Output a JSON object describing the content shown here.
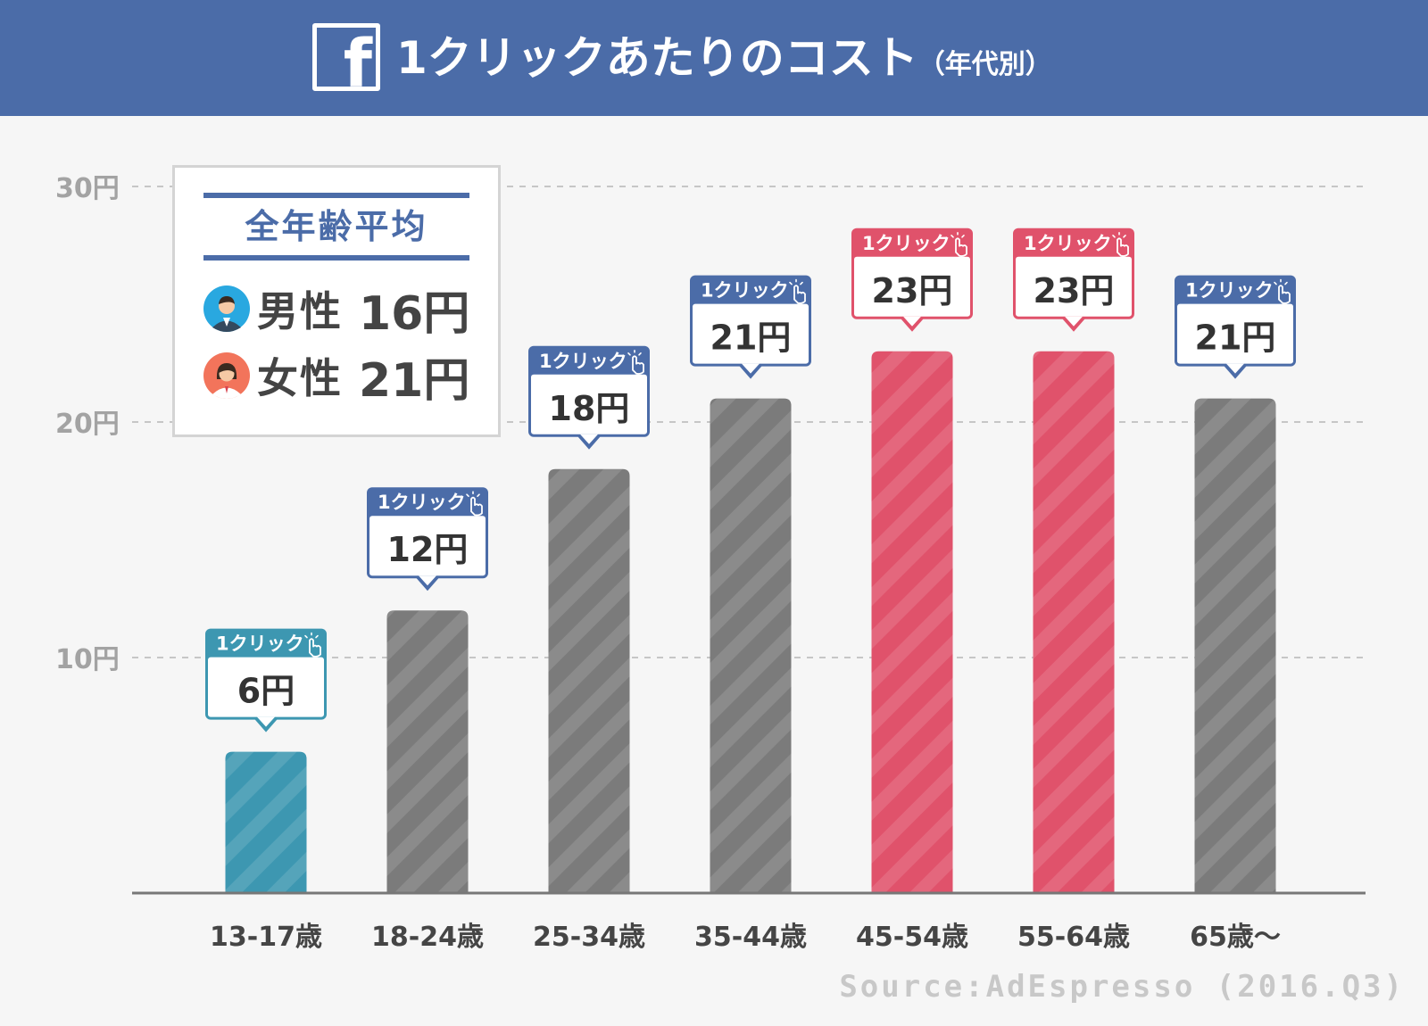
{
  "header": {
    "logo_icon": "facebook-icon",
    "logo_glyph": "f",
    "title": "1クリックあたりのコスト",
    "title_sub": "（年代別）",
    "background": "#4b6ca8"
  },
  "legend": {
    "title": "全年齢平均",
    "rows": [
      {
        "icon": "male-avatar-icon",
        "label": "男性",
        "value": "16円"
      },
      {
        "icon": "female-avatar-icon",
        "label": "女性",
        "value": "21円"
      }
    ]
  },
  "chart_data": {
    "type": "bar",
    "title": "1クリックあたりのコスト（年代別）",
    "categories": [
      "13-17歳",
      "18-24歳",
      "25-34歳",
      "35-44歳",
      "45-54歳",
      "55-64歳",
      "65歳〜"
    ],
    "values": [
      6,
      12,
      18,
      21,
      23,
      23,
      21
    ],
    "value_labels": [
      "6円",
      "12円",
      "18円",
      "21円",
      "23円",
      "23円",
      "21円"
    ],
    "tag_label": "1クリック",
    "ylim": [
      0,
      30
    ],
    "yticks": [
      10,
      20,
      30
    ],
    "ytick_labels": [
      "10円",
      "20円",
      "30円"
    ],
    "grid": true,
    "bar_colors": [
      "#3d97b1",
      "#7b7b7b",
      "#7b7b7b",
      "#7b7b7b",
      "#e0526b",
      "#e0526b",
      "#7b7b7b"
    ],
    "bubble_colors": [
      "#3d97b1",
      "#4b6ca8",
      "#4b6ca8",
      "#4b6ca8",
      "#e0526b",
      "#e0526b",
      "#4b6ca8"
    ]
  },
  "source": "Source:AdEspresso (2016.Q3)"
}
